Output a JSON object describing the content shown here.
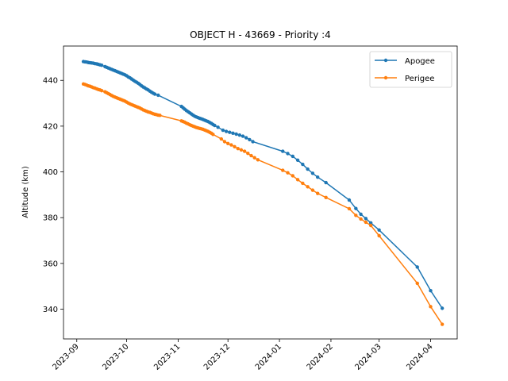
{
  "chart_data": {
    "type": "line",
    "title": "OBJECT H - 43669 - Priority :4",
    "xlabel": "",
    "ylabel": "Altitude (km)",
    "xlim": [
      "2023-08-24",
      "2024-04-17"
    ],
    "ylim": [
      327,
      455
    ],
    "xticks": [
      "2023-09",
      "2023-10",
      "2023-11",
      "2023-12",
      "2024-01",
      "2024-02",
      "2024-03",
      "2024-04"
    ],
    "yticks": [
      340,
      360,
      380,
      400,
      420,
      440
    ],
    "legend": "top-right",
    "grid": false,
    "series": [
      {
        "name": "Apogee",
        "color": "#1f77b4",
        "points": [
          [
            "2023-09-05",
            448.2
          ],
          [
            "2023-09-06",
            448.1
          ],
          [
            "2023-09-07",
            448.0
          ],
          [
            "2023-09-08",
            447.8
          ],
          [
            "2023-09-09",
            447.7
          ],
          [
            "2023-09-10",
            447.6
          ],
          [
            "2023-09-11",
            447.5
          ],
          [
            "2023-09-12",
            447.3
          ],
          [
            "2023-09-13",
            447.2
          ],
          [
            "2023-09-14",
            447.0
          ],
          [
            "2023-09-15",
            446.8
          ],
          [
            "2023-09-16",
            446.6
          ],
          [
            "2023-09-18",
            446.0
          ],
          [
            "2023-09-19",
            445.7
          ],
          [
            "2023-09-20",
            445.4
          ],
          [
            "2023-09-21",
            445.1
          ],
          [
            "2023-09-22",
            444.8
          ],
          [
            "2023-09-23",
            444.5
          ],
          [
            "2023-09-24",
            444.2
          ],
          [
            "2023-09-25",
            443.9
          ],
          [
            "2023-09-26",
            443.6
          ],
          [
            "2023-09-27",
            443.3
          ],
          [
            "2023-09-28",
            443.0
          ],
          [
            "2023-09-29",
            442.7
          ],
          [
            "2023-09-30",
            442.4
          ],
          [
            "2023-10-01",
            442.0
          ],
          [
            "2023-10-02",
            441.5
          ],
          [
            "2023-10-03",
            441.1
          ],
          [
            "2023-10-04",
            440.6
          ],
          [
            "2023-10-05",
            440.1
          ],
          [
            "2023-10-06",
            439.6
          ],
          [
            "2023-10-07",
            439.2
          ],
          [
            "2023-10-08",
            438.7
          ],
          [
            "2023-10-09",
            438.2
          ],
          [
            "2023-10-10",
            437.6
          ],
          [
            "2023-10-11",
            437.1
          ],
          [
            "2023-10-12",
            436.7
          ],
          [
            "2023-10-13",
            436.2
          ],
          [
            "2023-10-14",
            435.8
          ],
          [
            "2023-10-15",
            435.3
          ],
          [
            "2023-10-16",
            434.8
          ],
          [
            "2023-10-17",
            434.4
          ],
          [
            "2023-10-18",
            434.0
          ],
          [
            "2023-10-20",
            433.5
          ],
          [
            "2023-11-03",
            428.6
          ],
          [
            "2023-11-04",
            428.0
          ],
          [
            "2023-11-05",
            427.4
          ],
          [
            "2023-11-06",
            426.8
          ],
          [
            "2023-11-07",
            426.3
          ],
          [
            "2023-11-08",
            425.8
          ],
          [
            "2023-11-09",
            425.3
          ],
          [
            "2023-11-10",
            424.8
          ],
          [
            "2023-11-11",
            424.3
          ],
          [
            "2023-11-12",
            424.0
          ],
          [
            "2023-11-13",
            423.7
          ],
          [
            "2023-11-14",
            423.4
          ],
          [
            "2023-11-15",
            423.2
          ],
          [
            "2023-11-16",
            422.9
          ],
          [
            "2023-11-17",
            422.6
          ],
          [
            "2023-11-18",
            422.3
          ],
          [
            "2023-11-19",
            422.0
          ],
          [
            "2023-11-20",
            421.6
          ],
          [
            "2023-11-21",
            421.2
          ],
          [
            "2023-11-22",
            420.7
          ],
          [
            "2023-11-23",
            420.3
          ],
          [
            "2023-11-25",
            419.5
          ],
          [
            "2023-11-28",
            418.2
          ],
          [
            "2023-11-30",
            417.7
          ],
          [
            "2023-12-02",
            417.3
          ],
          [
            "2023-12-04",
            416.9
          ],
          [
            "2023-12-06",
            416.5
          ],
          [
            "2023-12-08",
            416.1
          ],
          [
            "2023-12-10",
            415.6
          ],
          [
            "2023-12-12",
            414.9
          ],
          [
            "2023-12-14",
            414.1
          ],
          [
            "2023-12-16",
            413.2
          ],
          [
            "2024-01-03",
            409.0
          ],
          [
            "2024-01-06",
            408.0
          ],
          [
            "2024-01-09",
            406.8
          ],
          [
            "2024-01-12",
            405.1
          ],
          [
            "2024-01-15",
            403.3
          ],
          [
            "2024-01-18",
            401.2
          ],
          [
            "2024-01-21",
            399.4
          ],
          [
            "2024-01-24",
            397.7
          ],
          [
            "2024-01-29",
            395.3
          ],
          [
            "2024-02-12",
            387.7
          ],
          [
            "2024-02-16",
            384.0
          ],
          [
            "2024-02-19",
            381.5
          ],
          [
            "2024-02-22",
            379.6
          ],
          [
            "2024-02-25",
            377.7
          ],
          [
            "2024-03-01",
            374.6
          ],
          [
            "2024-03-24",
            358.4
          ],
          [
            "2024-04-01",
            348.1
          ],
          [
            "2024-04-08",
            340.4
          ]
        ]
      },
      {
        "name": "Perigee",
        "color": "#ff7f0e",
        "points": [
          [
            "2023-09-05",
            438.4
          ],
          [
            "2023-09-06",
            438.2
          ],
          [
            "2023-09-07",
            437.9
          ],
          [
            "2023-09-08",
            437.6
          ],
          [
            "2023-09-09",
            437.4
          ],
          [
            "2023-09-10",
            437.1
          ],
          [
            "2023-09-11",
            436.8
          ],
          [
            "2023-09-12",
            436.6
          ],
          [
            "2023-09-13",
            436.3
          ],
          [
            "2023-09-14",
            436.0
          ],
          [
            "2023-09-15",
            435.8
          ],
          [
            "2023-09-16",
            435.5
          ],
          [
            "2023-09-18",
            435.0
          ],
          [
            "2023-09-19",
            434.6
          ],
          [
            "2023-09-20",
            434.2
          ],
          [
            "2023-09-21",
            433.8
          ],
          [
            "2023-09-22",
            433.4
          ],
          [
            "2023-09-23",
            433.0
          ],
          [
            "2023-09-24",
            432.7
          ],
          [
            "2023-09-25",
            432.4
          ],
          [
            "2023-09-26",
            432.1
          ],
          [
            "2023-09-27",
            431.8
          ],
          [
            "2023-09-28",
            431.5
          ],
          [
            "2023-09-29",
            431.2
          ],
          [
            "2023-09-30",
            430.9
          ],
          [
            "2023-10-01",
            430.5
          ],
          [
            "2023-10-02",
            430.1
          ],
          [
            "2023-10-03",
            429.7
          ],
          [
            "2023-10-04",
            429.4
          ],
          [
            "2023-10-05",
            429.1
          ],
          [
            "2023-10-06",
            428.8
          ],
          [
            "2023-10-07",
            428.5
          ],
          [
            "2023-10-08",
            428.2
          ],
          [
            "2023-10-09",
            427.9
          ],
          [
            "2023-10-10",
            427.5
          ],
          [
            "2023-10-11",
            427.1
          ],
          [
            "2023-10-12",
            426.8
          ],
          [
            "2023-10-13",
            426.5
          ],
          [
            "2023-10-14",
            426.2
          ],
          [
            "2023-10-15",
            426.0
          ],
          [
            "2023-10-16",
            425.7
          ],
          [
            "2023-10-17",
            425.4
          ],
          [
            "2023-10-18",
            425.2
          ],
          [
            "2023-10-19",
            425.0
          ],
          [
            "2023-10-20",
            424.8
          ],
          [
            "2023-10-21",
            424.7
          ],
          [
            "2023-11-03",
            422.3
          ],
          [
            "2023-11-04",
            422.0
          ],
          [
            "2023-11-05",
            421.7
          ],
          [
            "2023-11-06",
            421.3
          ],
          [
            "2023-11-07",
            421.0
          ],
          [
            "2023-11-08",
            420.6
          ],
          [
            "2023-11-09",
            420.3
          ],
          [
            "2023-11-10",
            420.0
          ],
          [
            "2023-11-11",
            419.7
          ],
          [
            "2023-11-12",
            419.4
          ],
          [
            "2023-11-13",
            419.2
          ],
          [
            "2023-11-14",
            419.0
          ],
          [
            "2023-11-15",
            418.8
          ],
          [
            "2023-11-16",
            418.6
          ],
          [
            "2023-11-17",
            418.3
          ],
          [
            "2023-11-18",
            418.0
          ],
          [
            "2023-11-19",
            417.7
          ],
          [
            "2023-11-20",
            417.3
          ],
          [
            "2023-11-21",
            416.9
          ],
          [
            "2023-11-22",
            416.4
          ],
          [
            "2023-11-27",
            414.4
          ],
          [
            "2023-11-29",
            413.2
          ],
          [
            "2023-12-01",
            412.4
          ],
          [
            "2023-12-03",
            411.8
          ],
          [
            "2023-12-05",
            411.0
          ],
          [
            "2023-12-07",
            410.2
          ],
          [
            "2023-12-09",
            409.6
          ],
          [
            "2023-12-11",
            409.0
          ],
          [
            "2023-12-13",
            408.1
          ],
          [
            "2023-12-15",
            407.1
          ],
          [
            "2023-12-17",
            406.2
          ],
          [
            "2023-12-19",
            405.3
          ],
          [
            "2024-01-03",
            400.7
          ],
          [
            "2024-01-06",
            399.6
          ],
          [
            "2024-01-09",
            398.3
          ],
          [
            "2024-01-12",
            396.6
          ],
          [
            "2024-01-15",
            395.0
          ],
          [
            "2024-01-18",
            393.5
          ],
          [
            "2024-01-21",
            392.0
          ],
          [
            "2024-01-24",
            390.6
          ],
          [
            "2024-01-29",
            388.8
          ],
          [
            "2024-02-12",
            383.9
          ],
          [
            "2024-02-16",
            381.0
          ],
          [
            "2024-02-19",
            379.4
          ],
          [
            "2024-02-22",
            378.0
          ],
          [
            "2024-02-25",
            376.6
          ],
          [
            "2024-03-01",
            372.1
          ],
          [
            "2024-03-24",
            351.3
          ],
          [
            "2024-04-01",
            341.1
          ],
          [
            "2024-04-08",
            333.4
          ]
        ]
      }
    ]
  }
}
